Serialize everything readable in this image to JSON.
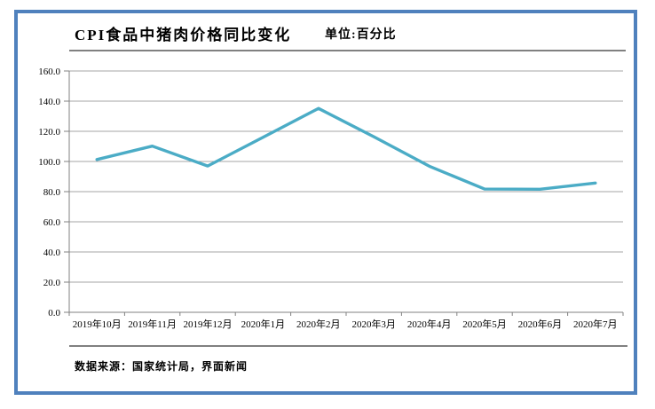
{
  "header": {
    "title": "CPI食品中猪肉价格同比变化",
    "unit": "单位:百分比"
  },
  "footer": {
    "source": "数据来源：国家统计局，界面新闻"
  },
  "colors": {
    "frame_border": "#4F81BD",
    "line": "#4BACC6",
    "grid": "#A6A6A6",
    "axis": "#808080",
    "separator": "#808080",
    "text": "#000000",
    "background": "#FFFFFF"
  },
  "chart_data": {
    "type": "line",
    "title": "CPI食品中猪肉价格同比变化",
    "unit_label": "单位:百分比",
    "source": "数据来源：国家统计局，界面新闻",
    "categories": [
      "2019年10月",
      "2019年11月",
      "2019年12月",
      "2020年1月",
      "2020年2月",
      "2020年3月",
      "2020年4月",
      "2020年5月",
      "2020年6月",
      "2020年7月"
    ],
    "series": [
      {
        "name": "CPI食品中猪肉价格同比变化",
        "values": [
          101.3,
          110.2,
          97.0,
          116.0,
          135.2,
          116.4,
          96.9,
          81.7,
          81.6,
          85.7
        ]
      }
    ],
    "xlabel": "",
    "ylabel": "",
    "ylim": [
      0,
      160
    ],
    "ytick_step": 20,
    "ytick_format": "one_decimal",
    "grid": true,
    "legend": false,
    "markers": false
  }
}
